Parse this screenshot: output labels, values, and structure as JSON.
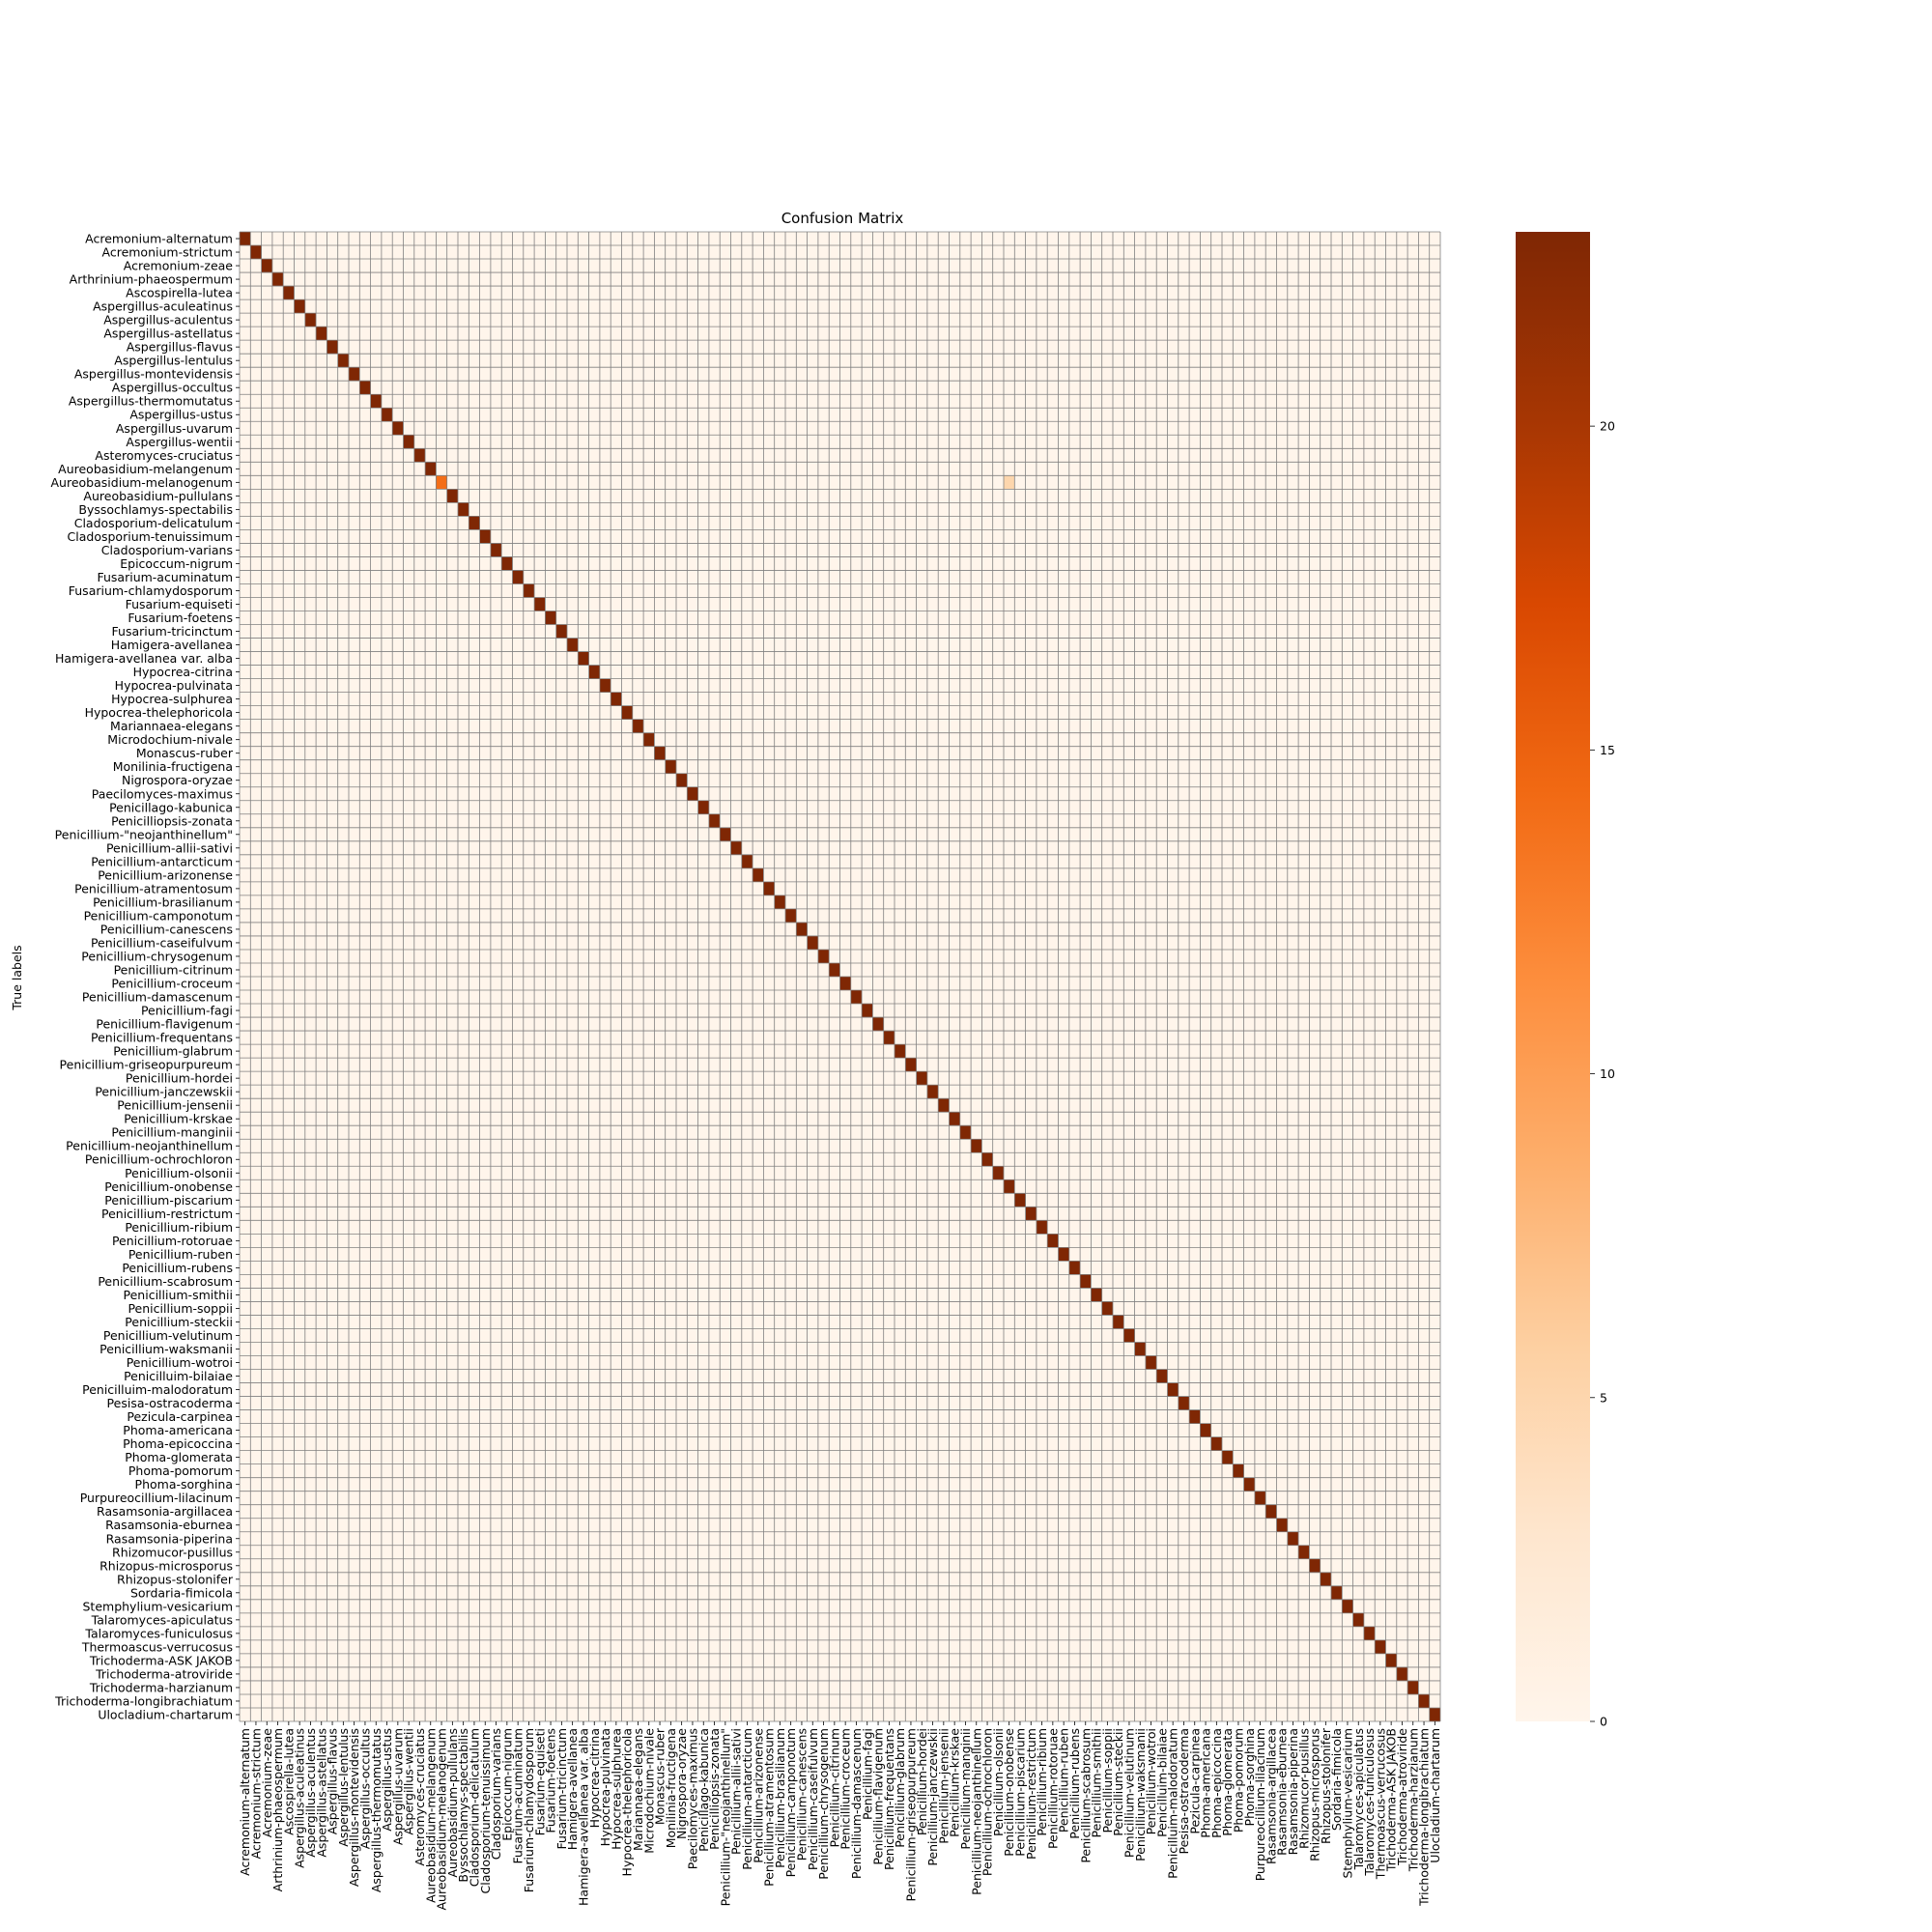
{
  "chart_data": {
    "type": "heatmap",
    "title": "Confusion Matrix",
    "ylabel": "True labels",
    "xlabel": "",
    "colormap": "Oranges",
    "color_low": "#fff5eb",
    "color_high": "#7f2704",
    "grid": true,
    "grid_color": "#808080",
    "vmin": 0,
    "vmax": 23,
    "colorbar_ticks": [
      "0",
      "5",
      "10",
      "15",
      "20"
    ],
    "colorbar_tick_values": [
      0,
      5,
      10,
      15,
      20
    ],
    "labels": [
      "Acremonium-alternatum",
      "Acremonium-strictum",
      "Acremonium-zeae",
      "Arthrinium-phaeospermum",
      "Ascospirella-lutea",
      "Aspergillus-aculeatinus",
      "Aspergillus-aculentus",
      "Aspergillus-astellatus",
      "Aspergillus-flavus",
      "Aspergillus-lentulus",
      "Aspergillus-montevidensis",
      "Aspergillus-occultus",
      "Aspergillus-thermomutatus",
      "Aspergillus-ustus",
      "Aspergillus-uvarum",
      "Aspergillus-wentii",
      "Asteromyces-cruciatus",
      "Aureobasidium-melangenum",
      "Aureobasidium-melanogenum",
      "Aureobasidium-pullulans",
      "Byssochlamys-spectabilis",
      "Cladosporium-delicatulum",
      "Cladosporium-tenuissimum",
      "Cladosporium-varians",
      "Epicoccum-nigrum",
      "Fusarium-acuminatum",
      "Fusarium-chlamydosporum",
      "Fusarium-equiseti",
      "Fusarium-foetens",
      "Fusarium-tricinctum",
      "Hamigera-avellanea",
      "Hamigera-avellanea var. alba",
      "Hypocrea-citrina",
      "Hypocrea-pulvinata",
      "Hypocrea-sulphurea",
      "Hypocrea-thelephoricola",
      "Mariannaea-elegans",
      "Microdochium-nivale",
      "Monascus-ruber",
      "Monilinia-fructigena",
      "Nigrospora-oryzae",
      "Paecilomyces-maximus",
      "Penicillago-kabunica",
      "Penicilliopsis-zonata",
      "Penicillium-\"neojanthinellum\"",
      "Penicillium-allii-sativi",
      "Penicillium-antarcticum",
      "Penicillium-arizonense",
      "Penicillium-atramentosum",
      "Penicillium-brasilianum",
      "Penicillium-camponotum",
      "Penicillium-canescens",
      "Penicillium-caseifulvum",
      "Penicillium-chrysogenum",
      "Penicillium-citrinum",
      "Penicillium-croceum",
      "Penicillium-damascenum",
      "Penicillium-fagi",
      "Penicillium-flavigenum",
      "Penicillium-frequentans",
      "Penicillium-glabrum",
      "Penicillium-griseopurpureum",
      "Penicillium-hordei",
      "Penicillium-janczewskii",
      "Penicillium-jensenii",
      "Penicillium-krskae",
      "Penicillium-manginii",
      "Penicillium-neojanthinellum",
      "Penicillium-ochrochloron",
      "Penicillium-olsonii",
      "Penicillium-onobense",
      "Penicillium-piscarium",
      "Penicillium-restrictum",
      "Penicillium-ribium",
      "Penicillium-rotoruae",
      "Penicillium-ruben",
      "Penicillium-rubens",
      "Penicillium-scabrosum",
      "Penicillium-smithii",
      "Penicillium-soppii",
      "Penicillium-steckii",
      "Penicillium-velutinum",
      "Penicillium-waksmanii",
      "Penicillium-wotroi",
      "Penicilluim-bilaiae",
      "Penicilluim-malodoratum",
      "Pesisa-ostracoderma",
      "Pezicula-carpinea",
      "Phoma-americana",
      "Phoma-epicoccina",
      "Phoma-glomerata",
      "Phoma-pomorum",
      "Phoma-sorghina",
      "Purpureocillium-lilacinum",
      "Rasamsonia-argillacea",
      "Rasamsonia-eburnea",
      "Rasamsonia-piperina",
      "Rhizomucor-pusillus",
      "Rhizopus-microsporus",
      "Rhizopus-stolonifer",
      "Sordaria-fimicola",
      "Stemphylium-vesicarium",
      "Talaromyces-apiculatus",
      "Talaromyces-funiculosus",
      "Thermoascus-verrucosus",
      "Trichoderma-ASK JAKOB",
      "Trichoderma-atroviride",
      "Trichoderma-harzianum",
      "Trichoderma-longibrachiatum",
      "Ulocladium-chartarum"
    ],
    "diagonal_value": 23,
    "overrides": [
      {
        "row": 18,
        "col": 18,
        "value": 14
      },
      {
        "row": 18,
        "col": 70,
        "value": 5
      },
      {
        "row": 109,
        "col": 109,
        "value": 23
      }
    ]
  }
}
